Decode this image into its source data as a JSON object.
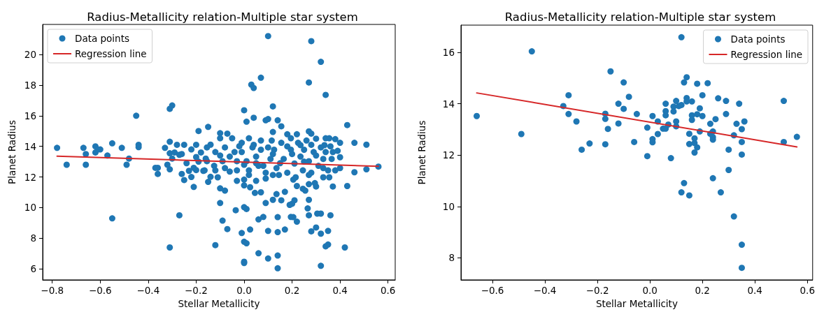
{
  "chart_data": [
    {
      "type": "scatter",
      "title": "Radius-Metallicity relation-Multiple star system",
      "xlabel": "Stellar Metallicity",
      "ylabel": "Planet Radius",
      "xlim": [
        -0.84,
        0.63
      ],
      "ylim": [
        5.28,
        21.96
      ],
      "xticks": [
        {
          "value": -0.8,
          "label": "−0.8"
        },
        {
          "value": -0.6,
          "label": "−0.6"
        },
        {
          "value": -0.4,
          "label": "−0.4"
        },
        {
          "value": -0.2,
          "label": "−0.2"
        },
        {
          "value": 0,
          "label": "0.0"
        },
        {
          "value": 0.2,
          "label": "0.2"
        },
        {
          "value": 0.4,
          "label": "0.4"
        },
        {
          "value": 0.6,
          "label": "0.6"
        }
      ],
      "yticks": [
        6,
        8,
        10,
        12,
        14,
        16,
        18,
        20
      ],
      "legend": "top left",
      "marker": "circle",
      "series": [
        {
          "name": "Data points",
          "type": "scatter",
          "color": "#1f77b4",
          "x": [
            -0.78,
            -0.74,
            -0.67,
            -0.66,
            -0.66,
            -0.62,
            -0.62,
            -0.61,
            -0.6,
            -0.57,
            -0.55,
            -0.55,
            -0.51,
            -0.49,
            -0.48,
            -0.45,
            -0.44,
            -0.44,
            -0.37,
            -0.36,
            -0.36,
            -0.33,
            -0.32,
            -0.31,
            -0.31,
            -0.31,
            -0.31,
            -0.3,
            -0.31,
            -0.3,
            -0.29,
            -0.28,
            -0.27,
            -0.27,
            -0.26,
            -0.25,
            -0.25,
            -0.24,
            -0.26,
            -0.23,
            -0.22,
            -0.21,
            -0.19,
            -0.17,
            -0.22,
            -0.2,
            -0.2,
            -0.19,
            -0.18,
            -0.16,
            -0.21,
            -0.2,
            0.1,
            0.28,
            0.32,
            0.07,
            0.27,
            0.03,
            0.04,
            0.34,
            0.0,
            0.12,
            0.01,
            0.04,
            0.09,
            0.1,
            0.14,
            0.43,
            -0.15,
            -0.1,
            -0.07,
            -0.1,
            -0.14,
            -0.05,
            -0.02,
            0.02,
            0.12,
            0.155,
            0.18,
            0.22,
            0.27,
            0.28,
            0.3,
            0.34,
            0.355,
            0.38,
            0.4,
            0.46,
            0.51,
            0.39,
            0.4,
            0.335,
            0.34,
            0.365,
            0.4,
            0.46,
            0.51,
            0.56,
            0.43,
            0.37,
            0.33,
            0.355,
            0.295,
            0.3,
            0.27,
            0.245,
            0.255,
            0.22,
            0.205,
            0.21,
            0.2,
            0.19,
            0.17,
            0.155,
            0.135,
            0.12,
            0.09,
            0.07,
            0.045,
            0.025,
            0.0,
            0.0,
            0.01,
            -0.035,
            -0.07,
            -0.09,
            -0.1,
            -0.1,
            -0.08,
            -0.12,
            -0.01,
            0.025,
            0.06,
            0.08,
            0.1,
            0.14,
            0.14,
            0.17,
            0.195,
            0.205,
            0.22,
            0.27,
            0.265,
            0.27,
            0.305,
            0.32,
            0.36,
            0.28,
            0.3,
            0.32,
            0.35,
            0.34,
            0.35,
            0.42,
            0.32,
            0.0,
            0.0,
            0.0,
            0.01,
            0.06,
            0.1,
            0.14,
            0.14,
            -0.03,
            0.0,
            0.05,
            0.09,
            0.12,
            0.06,
            -0.15,
            -0.14,
            -0.165,
            -0.11,
            -0.06,
            -0.155,
            -0.12,
            -0.08,
            -0.06,
            -0.03,
            -0.01,
            0.01,
            0.02,
            0.035,
            0.05,
            0.07,
            0.08,
            0.1,
            0.11,
            0.125,
            0.135,
            0.155,
            0.165,
            0.18,
            0.195,
            0.21,
            0.225,
            0.235,
            0.245,
            0.25,
            0.26,
            0.27,
            0.28,
            0.29,
            0.31,
            0.32,
            0.33,
            0.35,
            0.37,
            0.38,
            0.235,
            0.195,
            0.115,
            0.07,
            -0.01,
            -0.04,
            -0.09,
            -0.125,
            -0.155,
            0.02,
            0.09,
            0.145,
            0.215,
            0.27,
            0.33,
            -0.03,
            -0.08,
            -0.12,
            0.0,
            0.05,
            0.15,
            0.2,
            0.3,
            0.25,
            -0.1,
            0.12,
            0.04,
            0.18,
            0.28,
            0.36
          ],
          "values": [
            13.9,
            12.8,
            13.9,
            13.5,
            12.8,
            14.0,
            13.6,
            13.8,
            13.8,
            13.4,
            14.2,
            9.3,
            13.9,
            12.8,
            13.2,
            16.0,
            14.1,
            13.95,
            12.6,
            12.6,
            12.2,
            13.9,
            12.8,
            12.5,
            7.4,
            14.3,
            16.45,
            16.67,
            13.55,
            13.2,
            13.6,
            14.1,
            13.45,
            9.5,
            12.2,
            14.1,
            11.8,
            12.9,
            13.5,
            12.4,
            12.0,
            11.35,
            15.0,
            12.4,
            13.8,
            14.1,
            13.3,
            13.0,
            13.6,
            13.2,
            12.6,
            12.45,
            21.2,
            20.87,
            19.52,
            18.48,
            18.17,
            18.03,
            17.81,
            17.36,
            16.36,
            16.61,
            15.61,
            15.87,
            15.7,
            15.78,
            15.7,
            15.39,
            15.27,
            14.86,
            14.83,
            14.53,
            14.11,
            14.53,
            14.01,
            14.53,
            14.94,
            15.31,
            14.79,
            14.79,
            14.98,
            14.83,
            14.5,
            14.53,
            14.53,
            14.47,
            14.23,
            14.23,
            14.11,
            13.71,
            13.29,
            14.08,
            13.63,
            13.18,
            12.58,
            12.31,
            12.5,
            12.68,
            11.41,
            11.38,
            11.98,
            11.98,
            11.6,
            11.38,
            11.53,
            11.23,
            11.11,
            11.41,
            11.83,
            10.48,
            10.25,
            10.18,
            11.03,
            10.48,
            10.88,
            10.51,
            10.3,
            11.0,
            10.96,
            11.33,
            11.45,
            10.03,
            9.91,
            9.83,
            8.6,
            9.15,
            10.3,
            11.26,
            11.11,
            7.55,
            8.34,
            8.57,
            9.23,
            9.39,
            8.48,
            9.38,
            8.4,
            8.57,
            9.39,
            9.38,
            9.08,
            10.51,
            9.95,
            9.5,
            9.61,
            9.61,
            9.5,
            8.45,
            8.7,
            8.3,
            8.48,
            7.47,
            7.59,
            7.4,
            6.2,
            6.47,
            6.38,
            7.77,
            7.67,
            7.02,
            6.68,
            6.87,
            6.04,
            11.75,
            11.83,
            11.75,
            11.9,
            12.13,
            12.73,
            11.68,
            12.01,
            12.43,
            11.98,
            12.35,
            13.93,
            13.63,
            13.93,
            13.33,
            13.03,
            13.63,
            13.03,
            12.43,
            13.93,
            13.33,
            13.78,
            12.73,
            13.93,
            13.18,
            13.78,
            12.58,
            14.23,
            13.18,
            12.28,
            13.78,
            12.88,
            14.23,
            13.33,
            12.43,
            13.78,
            14.38,
            13.03,
            12.28,
            13.63,
            12.73,
            13.93,
            13.18,
            12.43,
            13.63,
            12.43,
            14.08,
            14.53,
            14.38,
            14.38,
            14.23,
            13.63,
            13.03,
            12.73,
            13.03,
            12.13,
            12.28,
            12.13,
            11.98,
            12.13,
            12.58,
            12.43,
            12.58,
            12.43,
            12.8,
            12.9,
            12.9,
            13.5,
            13.4,
            13.0,
            13.4,
            13.5,
            14.1,
            14.0,
            14.1,
            14.0
          ]
        },
        {
          "name": "Regression line",
          "type": "line",
          "color": "#d62728",
          "marker": "none",
          "x": [
            -0.78,
            0.56
          ],
          "values": [
            13.36,
            12.7
          ]
        }
      ]
    },
    {
      "type": "scatter",
      "title": "Radius-Metallicity relation-Multiple star system",
      "xlabel": "Stellar Metallicity",
      "ylabel": "Planet Radius",
      "xlim": [
        -0.72,
        0.62
      ],
      "ylim": [
        7.14,
        17.06
      ],
      "xticks": [
        {
          "value": -0.6,
          "label": "−0.6"
        },
        {
          "value": -0.4,
          "label": "−0.4"
        },
        {
          "value": -0.2,
          "label": "−0.2"
        },
        {
          "value": 0,
          "label": "0.0"
        },
        {
          "value": 0.2,
          "label": "0.2"
        },
        {
          "value": 0.4,
          "label": "0.4"
        },
        {
          "value": 0.6,
          "label": "0.6"
        }
      ],
      "yticks": [
        8,
        10,
        12,
        14,
        16
      ],
      "legend": "top right",
      "marker": "circle",
      "series": [
        {
          "name": "Data points",
          "type": "scatter",
          "color": "#1f77b4",
          "x": [
            -0.66,
            -0.49,
            -0.45,
            -0.31,
            -0.33,
            -0.31,
            -0.28,
            -0.26,
            -0.23,
            -0.17,
            -0.17,
            -0.16,
            -0.17,
            -0.15,
            -0.12,
            -0.12,
            0.12,
            -0.1,
            -0.08,
            -0.1,
            -0.05,
            -0.06,
            -0.01,
            -0.01,
            0.01,
            0.01,
            0.01,
            0.03,
            0.03,
            0.05,
            0.06,
            0.06,
            0.06,
            0.06,
            0.07,
            0.08,
            0.1,
            0.09,
            0.09,
            0.1,
            0.1,
            0.11,
            0.12,
            0.13,
            0.14,
            0.14,
            0.14,
            0.16,
            0.15,
            0.15,
            0.15,
            0.13,
            0.12,
            0.16,
            0.16,
            0.17,
            0.17,
            0.17,
            0.18,
            0.18,
            0.18,
            0.19,
            0.19,
            0.2,
            0.2,
            0.22,
            0.23,
            0.23,
            0.24,
            0.24,
            0.24,
            0.24,
            0.25,
            0.26,
            0.27,
            0.29,
            0.29,
            0.3,
            0.3,
            0.32,
            0.32,
            0.33,
            0.34,
            0.35,
            0.35,
            0.35,
            0.36,
            0.35,
            0.35,
            0.51,
            0.51,
            0.56
          ],
          "values": [
            13.52,
            12.82,
            16.04,
            14.33,
            13.91,
            13.6,
            13.31,
            12.21,
            12.45,
            13.61,
            13.41,
            13.02,
            12.42,
            15.26,
            14.0,
            13.23,
            16.59,
            14.83,
            14.27,
            13.8,
            13.6,
            12.51,
            11.96,
            13.07,
            13.52,
            12.62,
            12.5,
            13.31,
            12.82,
            13.03,
            13.03,
            14.0,
            13.71,
            13.55,
            13.19,
            11.88,
            14.11,
            13.89,
            13.7,
            13.31,
            13.12,
            13.91,
            13.95,
            14.83,
            15.03,
            14.22,
            14.09,
            14.09,
            12.83,
            12.43,
            10.43,
            10.91,
            10.55,
            13.55,
            13.37,
            12.65,
            12.1,
            12.47,
            12.3,
            14.78,
            13.59,
            13.82,
            12.92,
            14.33,
            13.52,
            14.8,
            13.22,
            12.83,
            12.92,
            12.7,
            12.6,
            11.1,
            13.4,
            14.21,
            10.55,
            14.11,
            13.6,
            12.21,
            11.42,
            9.61,
            12.77,
            13.22,
            14.0,
            13.01,
            12.51,
            12.02,
            13.31,
            8.51,
            7.61,
            14.11,
            12.51,
            12.71
          ]
        },
        {
          "name": "Regression line",
          "type": "line",
          "color": "#d62728",
          "marker": "none",
          "x": [
            -0.66,
            0.56
          ],
          "values": [
            14.42,
            12.32
          ]
        }
      ]
    }
  ]
}
